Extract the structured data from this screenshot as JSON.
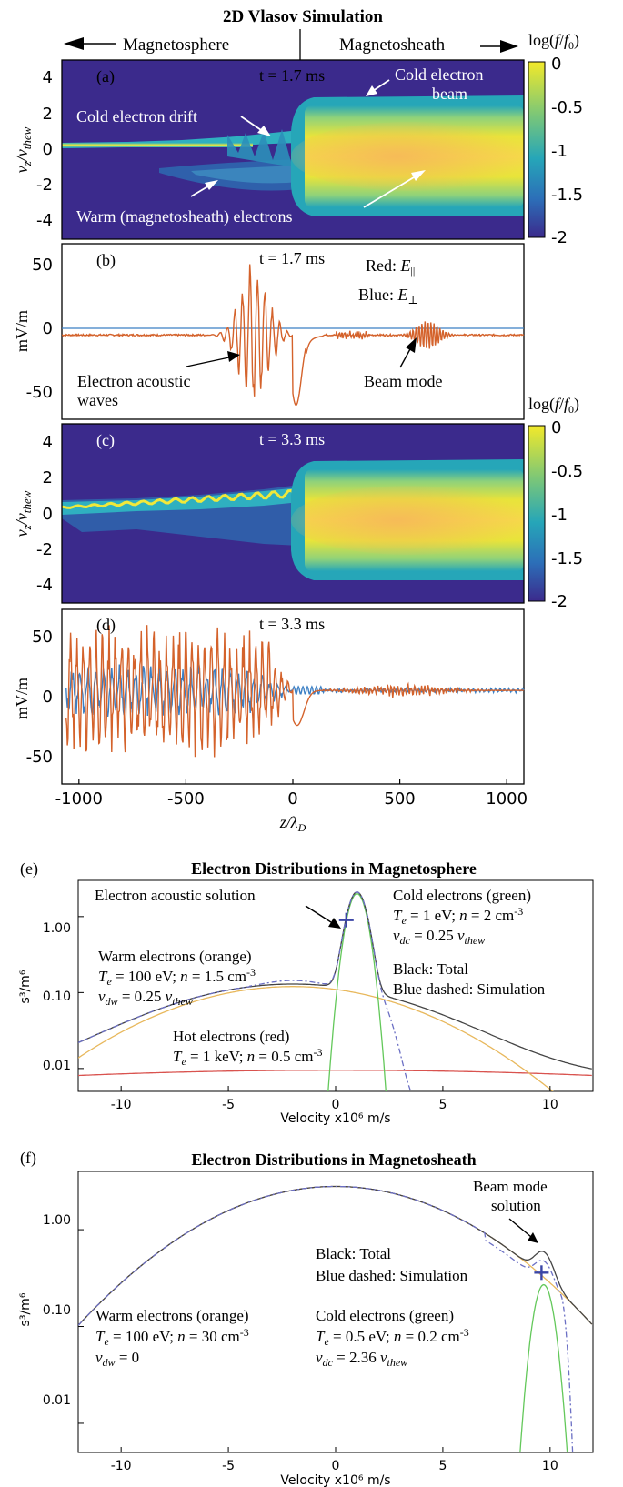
{
  "header": {
    "title": "2D Vlasov Simulation",
    "left_region": "Magnetosphere",
    "right_region": "Magnetosheath"
  },
  "colorbar": {
    "label": "log(f/f0)",
    "ticks": [
      "0",
      "-0.5",
      "-1",
      "-1.5",
      "-2"
    ]
  },
  "panel_a": {
    "tag": "(a)",
    "time": "t = 1.7 ms",
    "ylabel": "vz/vthew",
    "annotations": [
      "Cold electron drift",
      "Cold electron beam",
      "Warm (magnetosheath) electrons"
    ]
  },
  "panel_b": {
    "tag": "(b)",
    "time": "t = 1.7 ms",
    "ylabel": "mV/m",
    "legend_red": "Red: E‖",
    "legend_blue": "Blue: E⊥",
    "annotations": [
      "Electron acoustic waves",
      "Beam mode"
    ]
  },
  "panel_c": {
    "tag": "(c)",
    "time": "t = 3.3 ms",
    "ylabel": "vz/vthew"
  },
  "panel_d": {
    "tag": "(d)",
    "time": "t = 3.3 ms",
    "ylabel": "mV/m",
    "xlabel": "z/λD"
  },
  "panel_e": {
    "tag": "(e)",
    "title": "Electron Distributions in Magnetosphere",
    "ylabel": "s³/m⁶",
    "xlabel": "Velocity x10⁶ m/s",
    "annotations": {
      "ea": "Electron acoustic solution",
      "cold1": "Cold electrons (green)",
      "cold2": "Te = 1 eV; n = 2 cm⁻³",
      "cold3": "vdc = 0.25 vthew",
      "warm1": "Warm electrons (orange)",
      "warm2": "Te = 100 eV; n = 1.5 cm⁻³",
      "warm3": "vdw = 0.25 vthew",
      "hot1": "Hot electrons (red)",
      "hot2": "Te = 1 keV; n = 0.5 cm⁻³",
      "legend1": "Black: Total",
      "legend2": "Blue dashed: Simulation"
    }
  },
  "panel_f": {
    "tag": "(f)",
    "title": "Electron Distributions in Magnetosheath",
    "ylabel": "s³/m⁶",
    "xlabel": "Velocity x10⁶ m/s",
    "annotations": {
      "beam1": "Beam mode",
      "beam2": "solution",
      "legend1": "Black: Total",
      "legend2": "Blue dashed: Simulation",
      "warm1": "Warm electrons (orange)",
      "warm2": "Te = 100 eV; n = 30 cm⁻³",
      "warm3": "vdw = 0",
      "cold1": "Cold electrons (green)",
      "cold2": "Te = 0.5 eV; n = 0.2 cm⁻³",
      "cold3": "vdc = 2.36 vthew"
    }
  },
  "chart_data": [
    {
      "type": "heatmap",
      "panel": "a",
      "x_range": [
        -1080,
        1080
      ],
      "y_range": [
        -5,
        5
      ],
      "yticks": [
        4,
        2,
        0,
        -2,
        -4
      ],
      "colorbar_range": [
        -2,
        0
      ]
    },
    {
      "type": "line",
      "panel": "b",
      "x_range": [
        -1080,
        1080
      ],
      "ylim": [
        -60,
        65
      ],
      "yticks": [
        50,
        0,
        -50
      ],
      "series": [
        {
          "name": "E‖",
          "color": "#d4622b"
        },
        {
          "name": "E⊥",
          "color": "#3b7fc4"
        }
      ]
    },
    {
      "type": "heatmap",
      "panel": "c",
      "x_range": [
        -1080,
        1080
      ],
      "y_range": [
        -5,
        5
      ],
      "yticks": [
        4,
        2,
        0,
        -2,
        -4
      ],
      "colorbar_range": [
        -2,
        0
      ]
    },
    {
      "type": "line",
      "panel": "d",
      "x_range": [
        -1080,
        1080
      ],
      "xticks": [
        -1000,
        -500,
        0,
        500,
        1000
      ],
      "ylim": [
        -75,
        65
      ],
      "yticks": [
        50,
        0,
        -50
      ],
      "series": [
        {
          "name": "E‖",
          "color": "#d4622b"
        },
        {
          "name": "E⊥",
          "color": "#3b7fc4"
        }
      ]
    },
    {
      "type": "line",
      "panel": "e",
      "xlim": [
        -12,
        12
      ],
      "ylim": [
        0.005,
        3
      ],
      "yscale": "log",
      "xticks": [
        -10,
        -5,
        0,
        5,
        10
      ],
      "yticks": [
        0.01,
        0.1,
        1.0
      ],
      "ytick_labels": [
        "0.01",
        "0.10",
        "1.00"
      ],
      "series": [
        {
          "name": "Cold electrons",
          "color": "#63c85a",
          "Te_eV": 1,
          "n_cm3": 2,
          "peak_v": 1.0,
          "peak_f": 2.0
        },
        {
          "name": "Warm electrons",
          "color": "#e8b85c",
          "Te_eV": 100,
          "n_cm3": 1.5,
          "peak_f": 0.12
        },
        {
          "name": "Hot electrons",
          "color": "#d9534f",
          "Te_eV": 1000,
          "n_cm3": 0.5,
          "peak_f": 0.0095
        },
        {
          "name": "Total",
          "color": "#444444"
        },
        {
          "name": "Simulation",
          "color": "#6b6fc4",
          "dashed": true
        }
      ],
      "marker": {
        "label": "Electron acoustic solution",
        "x": 0.5,
        "y": 0.9
      }
    },
    {
      "type": "line",
      "panel": "f",
      "xlim": [
        -12,
        12
      ],
      "ylim": [
        0.005,
        4
      ],
      "yscale": "log",
      "xticks": [
        -10,
        -5,
        0,
        5,
        10
      ],
      "yticks": [
        0.01,
        0.1,
        1.0
      ],
      "ytick_labels": [
        "0.01",
        "0.10",
        "1.00"
      ],
      "series": [
        {
          "name": "Warm electrons",
          "color": "#e8b85c",
          "Te_eV": 100,
          "n_cm3": 30,
          "peak_f": 2.8
        },
        {
          "name": "Cold electrons",
          "color": "#63c85a",
          "Te_eV": 0.5,
          "n_cm3": 0.2,
          "peak_v": 9.7,
          "peak_f": 0.27
        },
        {
          "name": "Total",
          "color": "#444444"
        },
        {
          "name": "Simulation",
          "color": "#6b6fc4",
          "dashed": true
        }
      ],
      "marker": {
        "label": "Beam mode solution",
        "x": 9.6,
        "y": 0.36
      }
    }
  ]
}
